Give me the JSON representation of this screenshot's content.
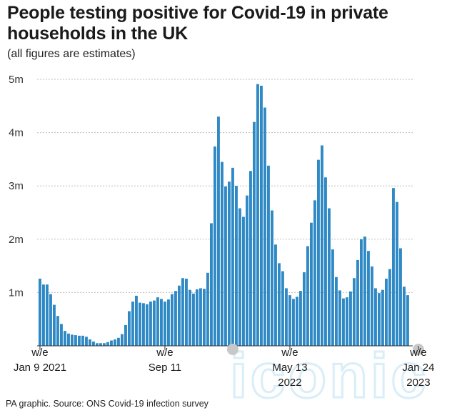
{
  "title": "People testing positive for Covid-19 in private households in the UK",
  "subtitle": "(all figures are estimates)",
  "source": "PA graphic. Source: ONS Covid-19 infection survey",
  "watermark": "iconic",
  "colors": {
    "bar": "#2f89c5",
    "grid": "#bdbdbd",
    "axis": "#333333",
    "marker": "#c8c8c8",
    "watermark": "#d9eef8"
  },
  "chart_data": {
    "type": "bar",
    "title": "People testing positive for Covid-19 in private households in the UK",
    "subtitle": "(all figures are estimates)",
    "xlabel": "",
    "ylabel": "",
    "ylim": [
      0,
      5000000
    ],
    "grid": true,
    "y_ticks": [
      {
        "value": 1000000,
        "label": "1m"
      },
      {
        "value": 2000000,
        "label": "2m"
      },
      {
        "value": 3000000,
        "label": "3m"
      },
      {
        "value": 4000000,
        "label": "4m"
      },
      {
        "value": 5000000,
        "label": "5m"
      }
    ],
    "x_ticks": [
      {
        "index": 0,
        "lines": [
          "w/e",
          "Jan 9 2021"
        ]
      },
      {
        "index": 35,
        "lines": [
          "w/e",
          "Sep 11"
        ]
      },
      {
        "index": 70,
        "lines": [
          "w/e",
          "May 13",
          "2022"
        ]
      },
      {
        "index": 106,
        "lines": [
          "w/e",
          "Jan 24",
          "2023"
        ]
      }
    ],
    "markers": [
      {
        "index": 54
      },
      {
        "index": 106
      }
    ],
    "values": [
      1260000,
      1150000,
      1150000,
      970000,
      770000,
      560000,
      410000,
      280000,
      230000,
      210000,
      200000,
      190000,
      190000,
      170000,
      120000,
      80000,
      50000,
      50000,
      50000,
      70000,
      100000,
      120000,
      150000,
      220000,
      390000,
      650000,
      830000,
      940000,
      810000,
      800000,
      780000,
      830000,
      850000,
      910000,
      880000,
      830000,
      870000,
      970000,
      1030000,
      1130000,
      1270000,
      1260000,
      1050000,
      980000,
      1060000,
      1080000,
      1070000,
      1370000,
      2300000,
      3740000,
      4300000,
      3450000,
      2990000,
      3080000,
      3340000,
      3000000,
      2580000,
      2420000,
      2820000,
      3280000,
      4200000,
      4910000,
      4880000,
      4470000,
      3380000,
      2540000,
      1900000,
      1550000,
      1400000,
      1080000,
      950000,
      880000,
      920000,
      1030000,
      1380000,
      1870000,
      2310000,
      2730000,
      3490000,
      3760000,
      3160000,
      2580000,
      1810000,
      1290000,
      1040000,
      890000,
      910000,
      1020000,
      1270000,
      1610000,
      2000000,
      2050000,
      1780000,
      1490000,
      1080000,
      990000,
      1050000,
      1260000,
      1440000,
      2960000,
      2700000,
      1830000,
      1110000,
      950000
    ]
  }
}
